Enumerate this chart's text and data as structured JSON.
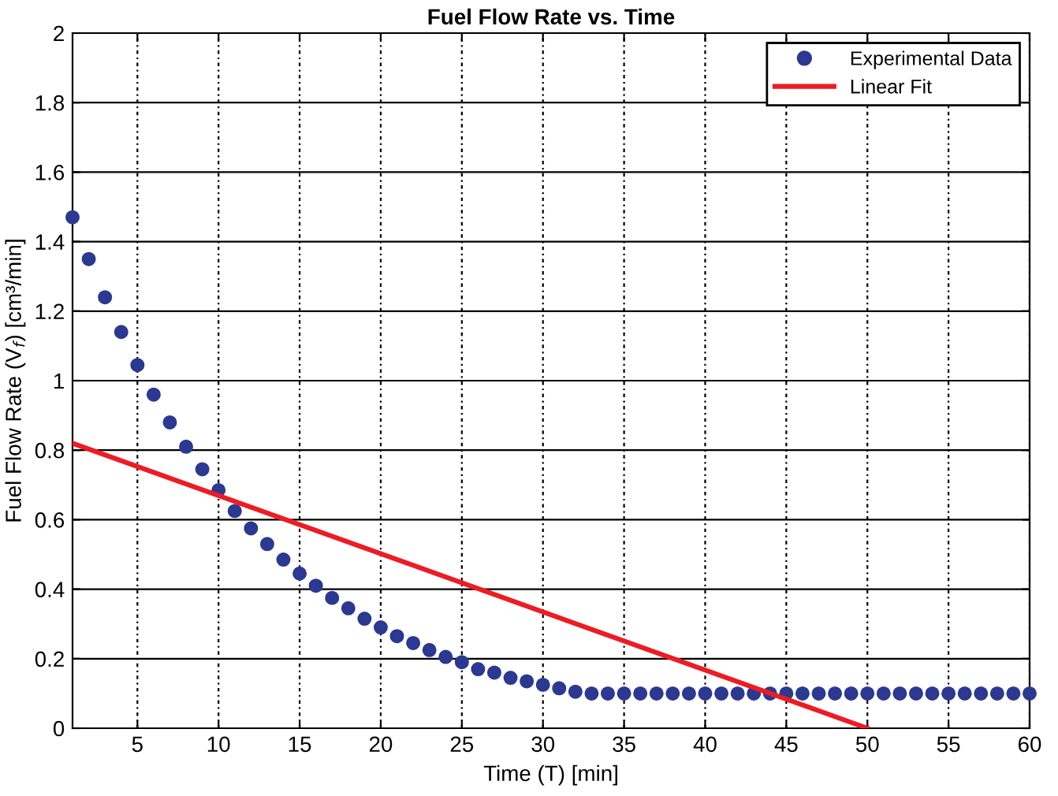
{
  "chart_data": {
    "type": "scatter",
    "title": "Fuel Flow Rate vs. Time",
    "xlabel": "Time (T) [min]",
    "ylabel": "Fuel Flow Rate (V$_{f}$) [cm³/min]",
    "xlim": [
      1,
      60
    ],
    "xticks": [
      5,
      10,
      15,
      20,
      25,
      30,
      35,
      40,
      45,
      50,
      55,
      60
    ],
    "ylim": [
      0,
      2
    ],
    "yticks": [
      0,
      0.2,
      0.4,
      0.6,
      0.8,
      1,
      1.2,
      1.4,
      1.6,
      1.8,
      2
    ],
    "grid": true,
    "legend": "top right",
    "series": [
      {
        "name": "Experimental Data",
        "marker": "circle",
        "color": "#2b3990",
        "x": [
          1,
          2,
          3,
          4,
          5,
          6,
          7,
          8,
          9,
          10,
          11,
          12,
          13,
          14,
          15,
          16,
          17,
          18,
          19,
          20,
          21,
          22,
          23,
          24,
          25,
          26,
          27,
          28,
          29,
          30,
          31,
          32,
          33,
          34,
          35,
          36,
          37,
          38,
          39,
          40,
          41,
          42,
          43,
          44,
          45,
          46,
          47,
          48,
          49,
          50,
          51,
          52,
          53,
          54,
          55,
          56,
          57,
          58,
          59,
          60
        ],
        "values": [
          1.47,
          1.35,
          1.24,
          1.14,
          1.045,
          0.96,
          0.88,
          0.81,
          0.745,
          0.685,
          0.625,
          0.575,
          0.53,
          0.485,
          0.445,
          0.41,
          0.375,
          0.345,
          0.315,
          0.29,
          0.265,
          0.245,
          0.225,
          0.205,
          0.19,
          0.17,
          0.16,
          0.145,
          0.135,
          0.125,
          0.115,
          0.105,
          0.1,
          0.1,
          0.1,
          0.1,
          0.1,
          0.1,
          0.1,
          0.1,
          0.1,
          0.1,
          0.1,
          0.1,
          0.1,
          0.1,
          0.1,
          0.1,
          0.1,
          0.1,
          0.1,
          0.1,
          0.1,
          0.1,
          0.1,
          0.1,
          0.1,
          0.1,
          0.1,
          0.1
        ]
      },
      {
        "name": "Linear Fit",
        "type": "line",
        "line_style": "solid",
        "color": "#ed1c24",
        "x": [
          1,
          50
        ],
        "values": [
          0.82,
          0
        ]
      }
    ]
  }
}
